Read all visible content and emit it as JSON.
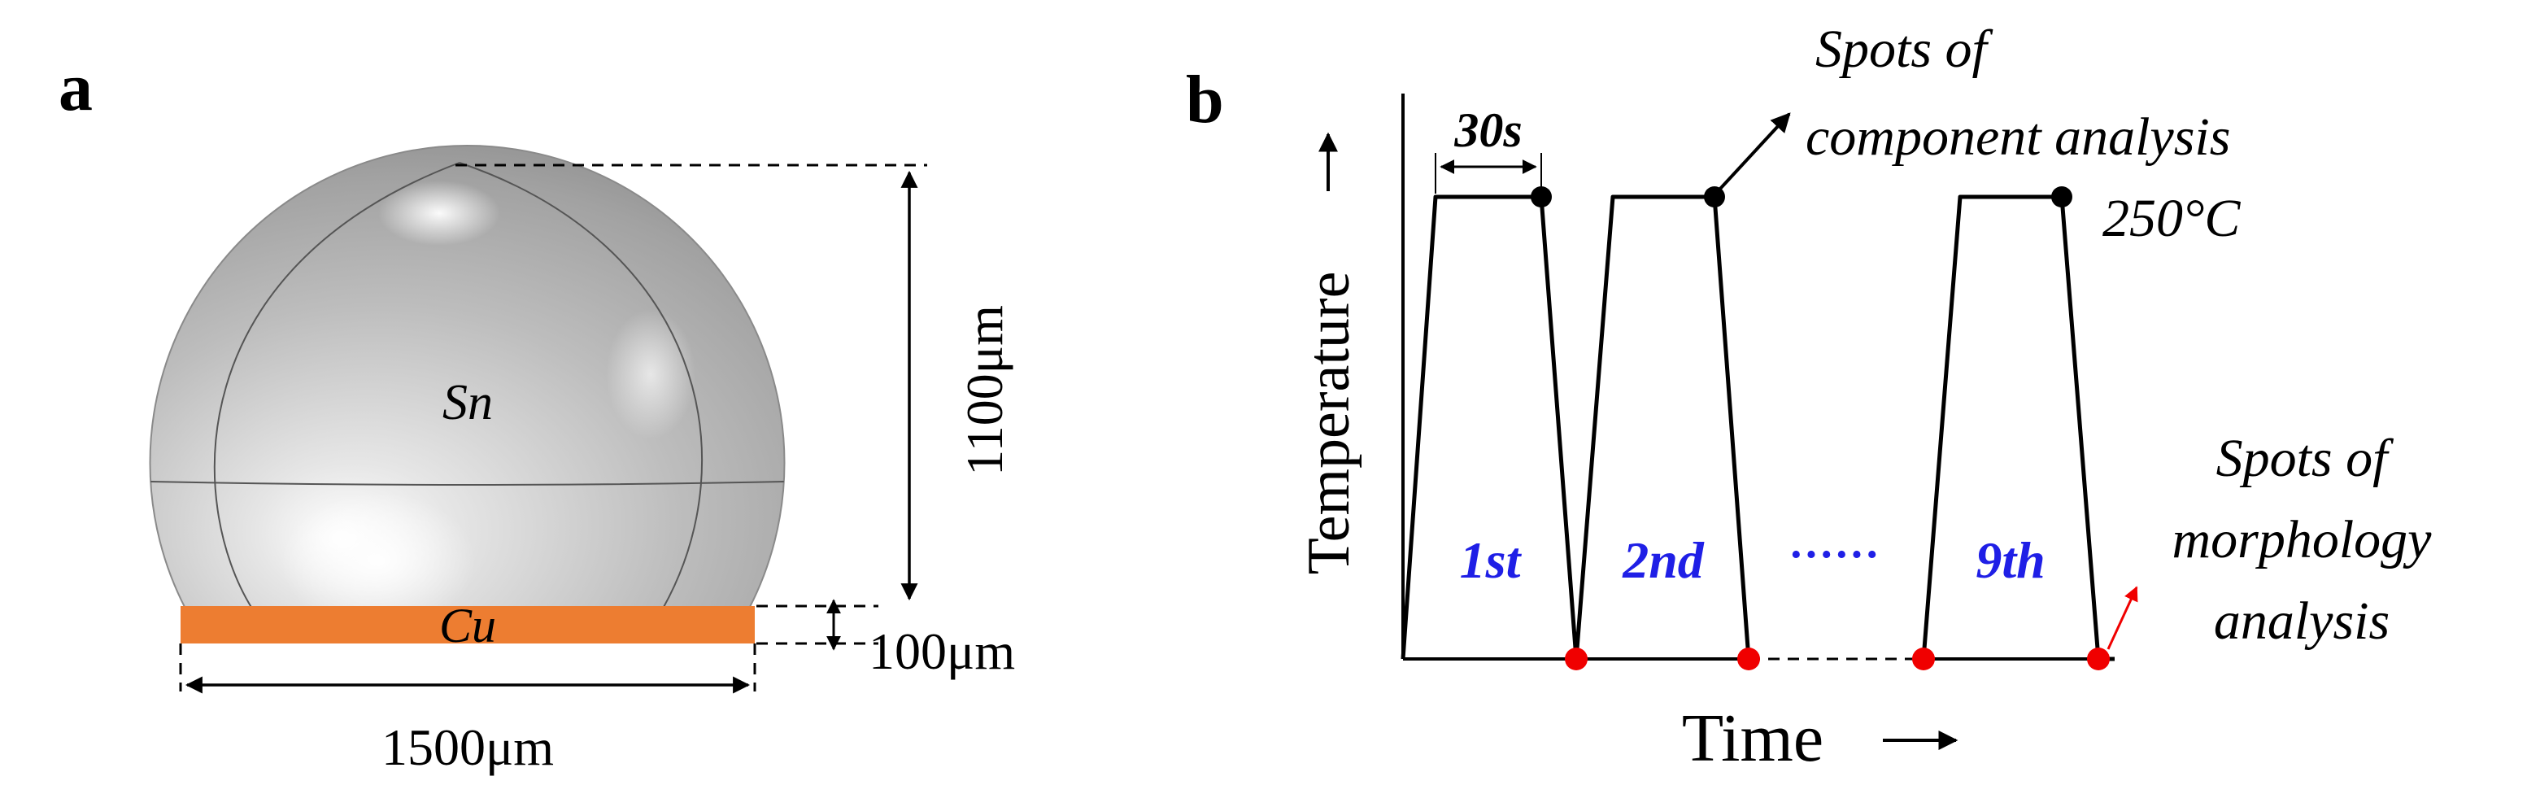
{
  "panel_a": {
    "label": "a",
    "sphere_label": "Sn",
    "substrate_label": "Cu",
    "height_dim": "1100μm",
    "thickness_dim": "100μm",
    "width_dim": "1500μm",
    "colors": {
      "substrate": "#ED7D31",
      "sphere": "#B9B9B9"
    }
  },
  "panel_b": {
    "label": "b",
    "xlabel": "Time",
    "ylabel": "Temperature",
    "hold_time": "30s",
    "peak_temp": "250°C",
    "component_spots_label_1": "Spots of",
    "component_spots_label_2": "component analysis",
    "morphology_spots_label_1": "Spots of",
    "morphology_spots_label_2": "morphology",
    "morphology_spots_label_3": "analysis",
    "cycles": [
      "1st",
      "2nd",
      "9th"
    ],
    "ellipsis": "······",
    "colors": {
      "cycle_text": "#1F1FE6",
      "morphology_dot": "#F00000",
      "component_dot": "#000000"
    }
  }
}
